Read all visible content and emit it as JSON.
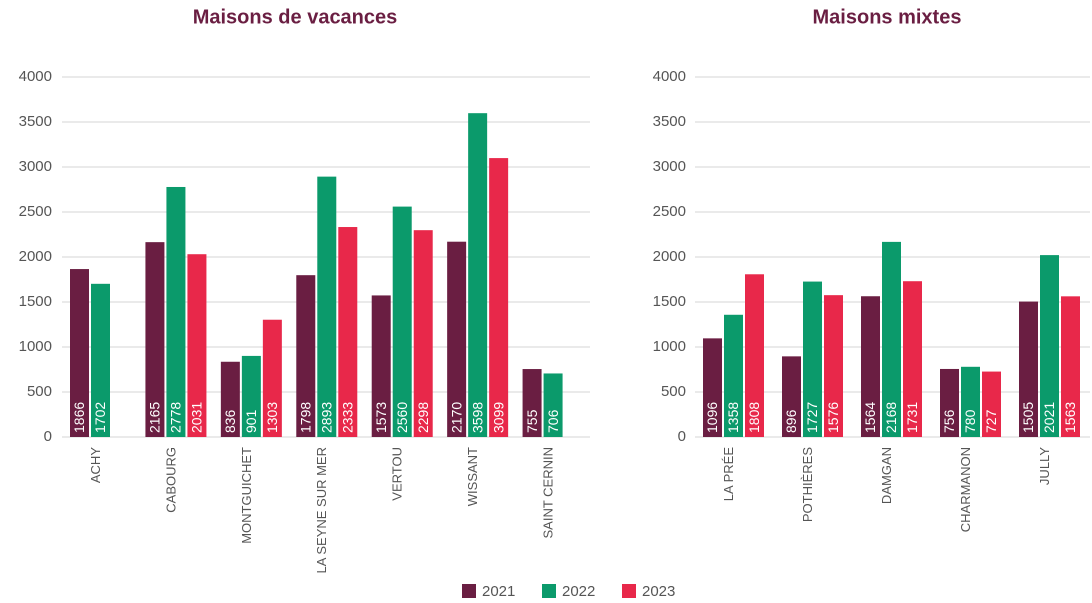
{
  "chart_data": [
    {
      "type": "bar",
      "title": "Maisons de vacances",
      "categories": [
        "ACHY",
        "CABOURG",
        "MONTGUICHET",
        "LA SEYNE SUR MER",
        "VERTOU",
        "WISSANT",
        "SAINT CERNIN"
      ],
      "series": [
        {
          "name": "2021",
          "color": "#6a1e42",
          "values": [
            1866,
            2165,
            836,
            1798,
            1573,
            2170,
            755
          ]
        },
        {
          "name": "2022",
          "color": "#0b9a6b",
          "values": [
            1702,
            2778,
            901,
            2893,
            2560,
            3598,
            706
          ]
        },
        {
          "name": "2023",
          "color": "#e8284a",
          "values": [
            null,
            2031,
            1303,
            2333,
            2298,
            3099,
            null
          ]
        }
      ],
      "ylim": [
        0,
        4000
      ],
      "yticks": [
        0,
        500,
        1000,
        1500,
        2000,
        2500,
        3000,
        3500,
        4000
      ],
      "grid": true,
      "legend": "bottom"
    },
    {
      "type": "bar",
      "title": "Maisons mixtes",
      "categories": [
        "LA PRÉE",
        "POTHIÈRES",
        "DAMGAN",
        "CHARMANON",
        "JULLY"
      ],
      "series": [
        {
          "name": "2021",
          "color": "#6a1e42",
          "values": [
            1096,
            896,
            1564,
            756,
            1505
          ]
        },
        {
          "name": "2022",
          "color": "#0b9a6b",
          "values": [
            1358,
            1727,
            2168,
            780,
            2021
          ]
        },
        {
          "name": "2023",
          "color": "#e8284a",
          "values": [
            1808,
            1576,
            1731,
            727,
            1563
          ]
        }
      ],
      "ylim": [
        0,
        4000
      ],
      "yticks": [
        0,
        500,
        1000,
        1500,
        2000,
        2500,
        3000,
        3500,
        4000
      ],
      "grid": true,
      "legend": "bottom"
    }
  ]
}
